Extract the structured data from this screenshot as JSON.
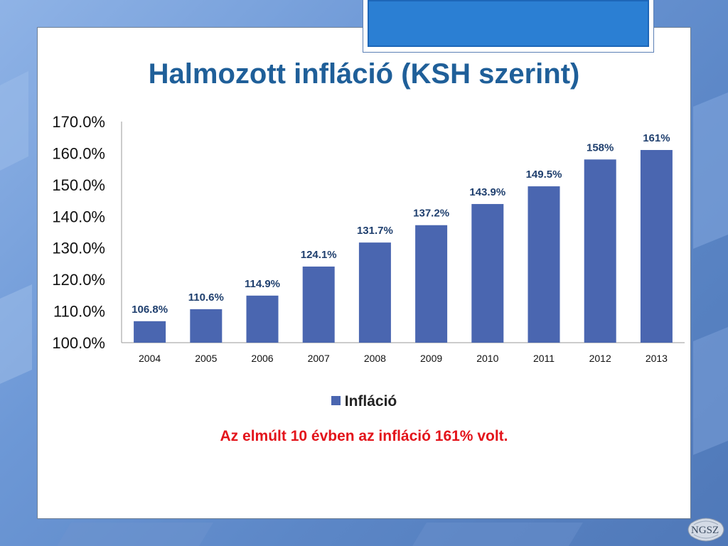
{
  "title": "Halmozott infláció (KSH szerint)",
  "chart_data": {
    "type": "bar",
    "categories": [
      "2004",
      "2005",
      "2006",
      "2007",
      "2008",
      "2009",
      "2010",
      "2011",
      "2012",
      "2013"
    ],
    "series": [
      {
        "name": "Infláció",
        "values": [
          106.8,
          110.6,
          114.9,
          124.1,
          131.7,
          137.2,
          143.9,
          149.5,
          158,
          161
        ],
        "labels": [
          "106.8%",
          "110.6%",
          "114.9%",
          "124.1%",
          "131.7%",
          "137.2%",
          "143.9%",
          "149.5%",
          "158%",
          "161%"
        ],
        "color": "#4a66b0"
      }
    ],
    "ylim": [
      100,
      170
    ],
    "yticks": [
      "100.0%",
      "110.0%",
      "120.0%",
      "130.0%",
      "140.0%",
      "150.0%",
      "160.0%",
      "170.0%"
    ],
    "ytick_values": [
      100,
      110,
      120,
      130,
      140,
      150,
      160,
      170
    ],
    "grid": false,
    "legend": "bottom",
    "label_color": "#1f3f6e"
  },
  "note": "Az elmúlt 10 évben az infláció 161% volt.",
  "logo_text": "NGSZ",
  "colors": {
    "title": "#1f5f99",
    "note": "#e3141b",
    "bar": "#4a66b0"
  }
}
